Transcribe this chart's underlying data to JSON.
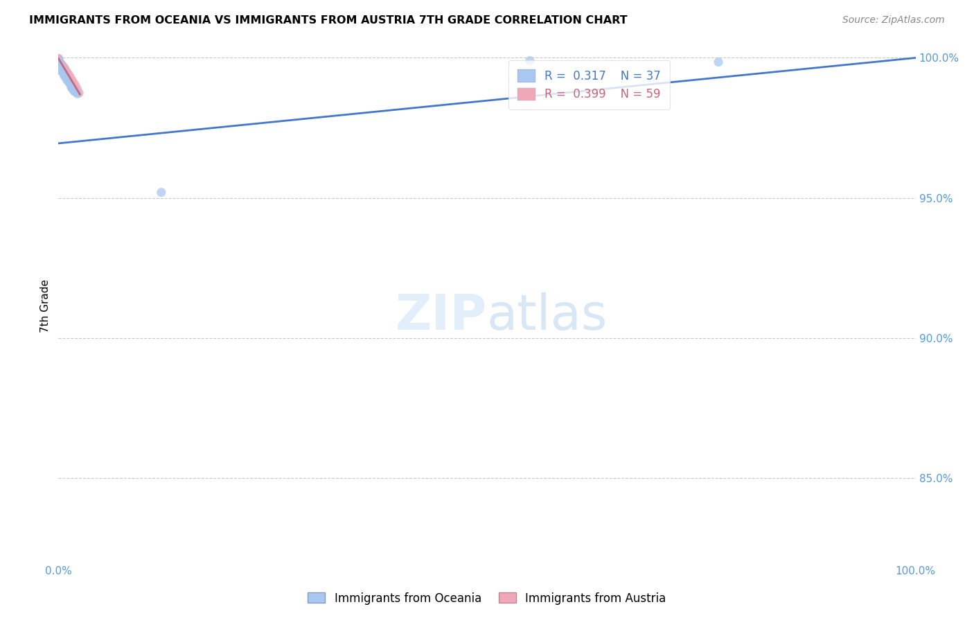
{
  "title": "IMMIGRANTS FROM OCEANIA VS IMMIGRANTS FROM AUSTRIA 7TH GRADE CORRELATION CHART",
  "source": "Source: ZipAtlas.com",
  "ylabel": "7th Grade",
  "xlim": [
    0.0,
    1.0
  ],
  "ylim": [
    0.82,
    1.003
  ],
  "x_ticks": [
    0.0,
    0.2,
    0.4,
    0.6,
    0.8,
    1.0
  ],
  "x_tick_labels": [
    "0.0%",
    "",
    "",
    "",
    "",
    "100.0%"
  ],
  "y_ticks": [
    0.85,
    0.9,
    0.95,
    1.0
  ],
  "y_tick_labels": [
    "85.0%",
    "90.0%",
    "95.0%",
    "100.0%"
  ],
  "grid_color": "#c8c8c8",
  "background_color": "#ffffff",
  "legend_R1": "0.317",
  "legend_N1": "37",
  "legend_R2": "0.399",
  "legend_N2": "59",
  "oceania_color": "#a8c8f0",
  "austria_color": "#f0a8b8",
  "line_color": "#4477cc",
  "austria_line_color": "#cc6677",
  "oceania_scatter_x": [
    0.001,
    0.001,
    0.001,
    0.001,
    0.001,
    0.002,
    0.002,
    0.002,
    0.002,
    0.003,
    0.003,
    0.003,
    0.004,
    0.004,
    0.005,
    0.005,
    0.006,
    0.006,
    0.007,
    0.007,
    0.008,
    0.009,
    0.01,
    0.01,
    0.012,
    0.013,
    0.014,
    0.015,
    0.015,
    0.016,
    0.017,
    0.018,
    0.02,
    0.022,
    0.12,
    0.55,
    0.77
  ],
  "oceania_scatter_y": [
    0.999,
    0.9985,
    0.998,
    0.9975,
    0.997,
    0.9972,
    0.9965,
    0.996,
    0.9955,
    0.9968,
    0.9962,
    0.9958,
    0.996,
    0.9955,
    0.9955,
    0.995,
    0.9948,
    0.9942,
    0.9942,
    0.9935,
    0.9935,
    0.9928,
    0.9925,
    0.992,
    0.9915,
    0.991,
    0.9905,
    0.99,
    0.9895,
    0.9892,
    0.9888,
    0.9882,
    0.9878,
    0.9872,
    0.952,
    0.999,
    0.9985
  ],
  "austria_scatter_x": [
    0.0001,
    0.0001,
    0.0001,
    0.0001,
    0.0001,
    0.0002,
    0.0002,
    0.0002,
    0.0002,
    0.0002,
    0.0003,
    0.0003,
    0.0003,
    0.0003,
    0.0004,
    0.0004,
    0.0004,
    0.0005,
    0.0005,
    0.0006,
    0.0006,
    0.0006,
    0.0007,
    0.0007,
    0.0008,
    0.0008,
    0.001,
    0.001,
    0.001,
    0.002,
    0.002,
    0.003,
    0.003,
    0.004,
    0.005,
    0.006,
    0.007,
    0.008,
    0.009,
    0.01,
    0.012,
    0.014,
    0.016,
    0.018,
    0.02,
    0.022,
    0.024,
    0.0001,
    0.0001,
    0.0002,
    0.0002,
    0.0003,
    0.0003,
    0.0004,
    0.0004,
    0.0005,
    0.0005,
    0.001,
    0.001
  ],
  "austria_scatter_y": [
    0.9998,
    0.9996,
    0.9994,
    0.9992,
    0.999,
    0.9995,
    0.9993,
    0.9991,
    0.9989,
    0.9987,
    0.9993,
    0.9991,
    0.9989,
    0.9987,
    0.9991,
    0.9989,
    0.9987,
    0.9989,
    0.9985,
    0.9988,
    0.9984,
    0.998,
    0.9986,
    0.9982,
    0.9985,
    0.9981,
    0.9985,
    0.9982,
    0.9978,
    0.998,
    0.9975,
    0.9978,
    0.9972,
    0.9975,
    0.997,
    0.9968,
    0.9962,
    0.9958,
    0.9952,
    0.9948,
    0.994,
    0.993,
    0.992,
    0.991,
    0.99,
    0.9888,
    0.9875,
    0.9988,
    0.9982,
    0.9986,
    0.998,
    0.9984,
    0.9978,
    0.9982,
    0.9976,
    0.998,
    0.9974,
    0.9976,
    0.997
  ],
  "oceania_line_x": [
    0.0,
    1.0
  ],
  "oceania_line_y": [
    0.9695,
    1.0
  ],
  "austria_line_x_end": 0.025,
  "austria_line_y_start": 0.9998,
  "austria_line_y_end": 0.987
}
